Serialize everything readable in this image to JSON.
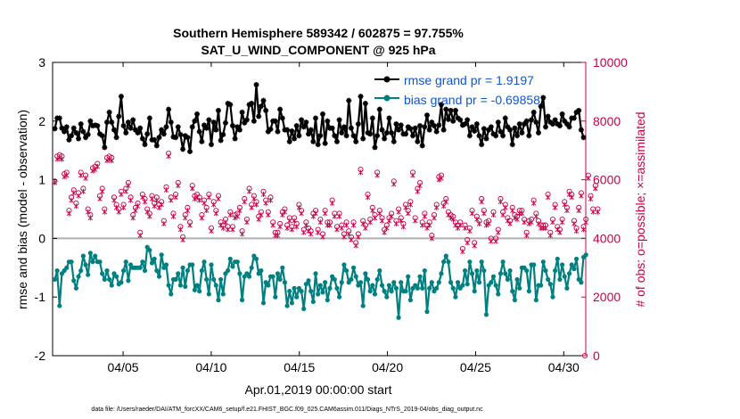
{
  "chart_data": {
    "type": "line",
    "title_line1": "Southern Hemisphere 589342 / 602875 = 97.755%",
    "title_line2": "SAT_U_WIND_COMPONENT @ 925 hPa",
    "xlabel": "Apr.01,2019 00:00:00 start",
    "ylabel_left": "rmse and bias (model - observation)",
    "ylabel_right": "# of obs: o=possible; ×=assimilated",
    "ylim_left": [
      -2,
      3
    ],
    "ylim_right": [
      0,
      10000
    ],
    "yticks_left": [
      "3",
      "2",
      "1",
      "0",
      "-1",
      "-2"
    ],
    "yticks_right": [
      "10000",
      "8000",
      "6000",
      "4000",
      "2000",
      "0"
    ],
    "xlim_days": [
      0,
      30.25
    ],
    "xticks": [
      {
        "day": 4,
        "label": "04/05"
      },
      {
        "day": 9,
        "label": "04/10"
      },
      {
        "day": 14,
        "label": "04/15"
      },
      {
        "day": 19,
        "label": "04/20"
      },
      {
        "day": 24,
        "label": "04/25"
      },
      {
        "day": 29,
        "label": "04/30"
      }
    ],
    "zero_line": 0,
    "colors": {
      "rmse": "#000000",
      "bias": "#008080",
      "obs": "#c8004a",
      "zero": "#b0b0b0",
      "legend_text": "#1155cc"
    },
    "series": [
      {
        "name": "rmse grand pr = 1.9197",
        "key": "rmse",
        "values": [
          1.87,
          2.05,
          2.05,
          1.88,
          1.82,
          1.9,
          1.68,
          1.75,
          1.88,
          1.8,
          1.7,
          1.95,
          1.82,
          1.72,
          1.77,
          2.0,
          1.92,
          1.93,
          1.92,
          1.78,
          1.75,
          1.55,
          1.98,
          2.15,
          1.98,
          1.85,
          1.72,
          2.08,
          2.42,
          1.92,
          1.8,
          1.98,
          1.88,
          2.02,
          1.85,
          1.8,
          1.88,
          1.7,
          1.6,
          1.78,
          2.05,
          1.68,
          1.68,
          1.58,
          1.72,
          1.85,
          1.78,
          1.9,
          2.2,
          1.98,
          1.73,
          1.72,
          1.9,
          1.77,
          1.52,
          1.75,
          1.72,
          1.48,
          1.9,
          2.0,
          2.12,
          1.82,
          1.65,
          1.93,
          1.88,
          2.02,
          1.6,
          1.98,
          1.85,
          2.18,
          1.67,
          1.77,
          1.97,
          2.3,
          2.28,
          1.92,
          1.7,
          1.9,
          1.85,
          2.15,
          1.97,
          2.02,
          2.28,
          2.3,
          2.0,
          2.62,
          2.08,
          2.25,
          2.35,
          2.18,
          1.82,
          1.86,
          2.0,
          2.0,
          1.82,
          2.2,
          2.05,
          1.85,
          1.85,
          1.65,
          1.83,
          1.7,
          1.92,
          1.75,
          2.02,
          1.9,
          1.98,
          1.78,
          1.85,
          1.65,
          2.05,
          1.6,
          1.75,
          2.12,
          1.62,
          2.0,
          1.88,
          1.88,
          1.75,
          1.65,
          2.02,
          1.8,
          1.9,
          1.75,
          2.35,
          1.88,
          1.75,
          1.65,
          1.95,
          2.42,
          1.7,
          2.3,
          1.8,
          1.78,
          2.05,
          1.55,
          1.75,
          2.2,
          1.85,
          1.7,
          1.8,
          2.05,
          1.8,
          1.65,
          1.95,
          1.85,
          1.93,
          1.78,
          1.78,
          1.9,
          1.87,
          1.75,
          1.88,
          1.65,
          1.92,
          1.58,
          1.9,
          2.1,
          1.85,
          1.98,
          1.92,
          1.82,
          1.93,
          2.28,
          1.85,
          2.2,
          2.03,
          2.18,
          2.0,
          2.18,
          2.05,
          2.02,
          1.93,
          1.95,
          2.02,
          1.75,
          1.9,
          1.83,
          1.95,
          1.75,
          1.6,
          1.87,
          1.7,
          1.85,
          1.9,
          1.78,
          1.75,
          1.98,
          1.82,
          1.75,
          2.05,
          1.9,
          1.85,
          1.6,
          1.88,
          1.75,
          1.95,
          1.8,
          1.95,
          2.0,
          1.75,
          2.02,
          2.15,
          1.98,
          1.8,
          2.25,
          2.4,
          1.9,
          2.08,
          1.98,
          1.95,
          2.02,
          1.95,
          1.92,
          2.12,
          2.0,
          1.95,
          1.9,
          2.05,
          2.05,
          2.15,
          2.18,
          1.85,
          1.72
        ]
      },
      {
        "name": "bias grand pr = -0.69858",
        "key": "bias",
        "values": [
          -0.7,
          -0.55,
          -1.15,
          -0.6,
          -0.55,
          -0.5,
          -0.4,
          -0.4,
          -0.72,
          -0.85,
          -0.65,
          -0.55,
          -0.3,
          -0.45,
          -0.62,
          -0.25,
          -0.4,
          -0.3,
          -0.4,
          -0.4,
          -0.6,
          -0.7,
          -0.55,
          -0.7,
          -0.8,
          -0.6,
          -0.65,
          -0.78,
          -0.75,
          -0.55,
          -0.4,
          -0.72,
          -0.45,
          -0.5,
          -0.5,
          -0.5,
          -0.5,
          -0.4,
          -0.55,
          -0.15,
          -0.2,
          -0.42,
          -0.35,
          -0.55,
          -0.65,
          -0.28,
          -0.5,
          -0.45,
          -0.8,
          -0.95,
          -0.7,
          -0.7,
          -0.6,
          -0.8,
          -0.5,
          -0.82,
          -0.55,
          -0.45,
          -0.45,
          -0.88,
          -0.8,
          -0.9,
          -0.55,
          -0.4,
          -0.7,
          -0.95,
          -0.45,
          -0.7,
          -0.8,
          -1.05,
          -0.7,
          -0.95,
          -0.6,
          -0.55,
          -0.35,
          -0.48,
          -0.4,
          -0.4,
          -0.6,
          -1.05,
          -0.65,
          -0.6,
          -0.65,
          -0.5,
          -0.3,
          -0.35,
          -0.6,
          -0.55,
          -1.1,
          -0.75,
          -0.8,
          -0.65,
          -0.65,
          -1.0,
          -0.6,
          -0.7,
          -0.5,
          -0.75,
          -1.15,
          -0.9,
          -1.1,
          -0.85,
          -1.0,
          -0.85,
          -0.9,
          -1.2,
          -0.78,
          -0.72,
          -0.9,
          -1.08,
          -0.6,
          -0.95,
          -0.8,
          -0.92,
          -0.75,
          -1.05,
          -0.85,
          -0.65,
          -0.7,
          -0.85,
          -1.0,
          -0.75,
          -0.45,
          -0.55,
          -0.75,
          -0.7,
          -0.5,
          -0.65,
          -0.8,
          -0.75,
          -1.15,
          -0.6,
          -0.7,
          -0.9,
          -0.8,
          -0.95,
          -0.7,
          -0.55,
          -0.8,
          -0.9,
          -1.0,
          -0.8,
          -0.9,
          -0.75,
          -0.85,
          -1.35,
          -0.75,
          -0.9,
          -0.9,
          -0.65,
          -1.05,
          -0.85,
          -0.8,
          -0.85,
          -0.65,
          -0.85,
          -0.55,
          -1.25,
          -0.85,
          -0.75,
          -0.9,
          -0.85,
          -0.75,
          -0.6,
          -0.4,
          -0.3,
          -0.4,
          -0.75,
          -0.85,
          -1.0,
          -0.75,
          -0.85,
          -0.8,
          -0.55,
          -0.78,
          -0.4,
          -0.6,
          -0.9,
          -0.55,
          -0.75,
          -0.4,
          -0.55,
          -1.3,
          -0.8,
          -0.75,
          -0.65,
          -0.8,
          -0.95,
          -0.6,
          -0.4,
          -0.6,
          -0.7,
          -0.55,
          -0.9,
          -1.05,
          -0.7,
          -0.85,
          -0.5,
          -0.5,
          -0.55,
          -0.9,
          -0.45,
          -0.45,
          -1.05,
          -0.8,
          -0.8,
          -0.4,
          -0.55,
          -0.7,
          -0.78,
          -1.0,
          -0.55,
          -0.35,
          -0.7,
          -0.45,
          -0.65,
          -0.85,
          -0.6,
          -0.45,
          -0.52,
          -0.35,
          -0.7,
          -0.75,
          -0.32,
          -0.28
        ]
      },
      {
        "name": "obs possible",
        "key": "obs_possible",
        "values": [
          5950,
          6800,
          6850,
          6800,
          6200,
          6250,
          4950,
          5400,
          5650,
          5200,
          5550,
          6250,
          5700,
          6150,
          5000,
          4800,
          6400,
          6450,
          6550,
          5450,
          5700,
          5000,
          6750,
          6800,
          6750,
          5400,
          5150,
          5000,
          5600,
          5150,
          5700,
          5900,
          5400,
          4800,
          5050,
          5200,
          4200,
          5500,
          5350,
          5000,
          4850,
          5450,
          5200,
          5400,
          5150,
          5250,
          4600,
          5750,
          6900,
          5400,
          4850,
          5500,
          5900,
          4400,
          4050,
          4800,
          5050,
          4550,
          5800,
          5450,
          5500,
          5400,
          4800,
          5300,
          5050,
          5500,
          4350,
          5250,
          4950,
          5450,
          4550,
          4450,
          4650,
          4400,
          4900,
          4400,
          4800,
          4850,
          5050,
          4250,
          5350,
          4650,
          5700,
          5150,
          5450,
          5250,
          4750,
          4900,
          5600,
          5300,
          4900,
          5400,
          4550,
          4200,
          4200,
          4500,
          4900,
          5000,
          4450,
          4700,
          4400,
          4700,
          4500,
          5150,
          4950,
          4300,
          4550,
          4350,
          4250,
          4850,
          4950,
          4300,
          4650,
          4150,
          4950,
          4550,
          4550,
          5300,
          4850,
          4400,
          4850,
          4450,
          4150,
          4550,
          4250,
          4050,
          4550,
          3850,
          4150,
          6350,
          4600,
          4450,
          5500,
          4650,
          5050,
          4800,
          6250,
          4950,
          4700,
          4300,
          4450,
          4700,
          4850,
          5950,
          4600,
          5000,
          4700,
          4500,
          5150,
          4950,
          5250,
          6250,
          4700,
          5700,
          5900,
          4550,
          4850,
          4450,
          4550,
          4100,
          4800,
          5150,
          6100,
          6150,
          5200,
          5350,
          4900,
          4800,
          4750,
          4550,
          4450,
          4550,
          3650,
          4450,
          3950,
          4350,
          4950,
          3850,
          4750,
          4600,
          5350,
          4950,
          4550,
          4600,
          4000,
          4900,
          4000,
          4300,
          5350,
          4900,
          5150,
          4700,
          4600,
          5050,
          4800,
          4750,
          4950,
          4950,
          4650,
          4200,
          4600,
          4650,
          5300,
          4850,
          4600,
          4450,
          4450,
          4450,
          5500,
          4200,
          4650,
          5150,
          4400,
          4300,
          4650,
          5250,
          5050,
          5600,
          5500,
          4600,
          4350,
          5050,
          5550,
          4400,
          4650,
          6150,
          5450,
          5000,
          5800,
          5000
        ]
      },
      {
        "name": "obs assimilated",
        "key": "obs_assimilated",
        "values": [
          5900,
          6700,
          6750,
          6700,
          6100,
          6150,
          4850,
          5300,
          5550,
          5100,
          5450,
          6150,
          5600,
          6050,
          4900,
          4700,
          6300,
          6350,
          6450,
          5350,
          5600,
          4900,
          6650,
          6700,
          6650,
          5300,
          5050,
          4900,
          5500,
          5050,
          5600,
          5800,
          5300,
          4700,
          4950,
          5100,
          4100,
          5400,
          5250,
          4900,
          4750,
          5350,
          5100,
          5300,
          5050,
          5150,
          4500,
          5650,
          6800,
          5300,
          4750,
          5400,
          5800,
          4300,
          3950,
          4700,
          4950,
          4450,
          5700,
          5350,
          5400,
          5300,
          4700,
          5200,
          4950,
          5400,
          4250,
          5150,
          4850,
          5350,
          4450,
          4350,
          4550,
          4300,
          4800,
          4300,
          4700,
          4750,
          4950,
          4150,
          5250,
          4550,
          5600,
          5050,
          5350,
          5150,
          4650,
          4800,
          5500,
          5200,
          4800,
          5300,
          4450,
          4100,
          4100,
          4400,
          4800,
          4900,
          4350,
          4600,
          4300,
          4600,
          4400,
          5050,
          4850,
          4200,
          4450,
          4250,
          4150,
          4750,
          4850,
          4200,
          4550,
          4050,
          4850,
          4450,
          4450,
          5200,
          4750,
          4300,
          4750,
          4350,
          4050,
          4450,
          4150,
          3950,
          4450,
          3750,
          4050,
          6250,
          4500,
          4350,
          5400,
          4550,
          4950,
          4700,
          6150,
          4850,
          4600,
          4200,
          4350,
          4600,
          4750,
          5850,
          4500,
          4900,
          4600,
          4400,
          5050,
          4850,
          5150,
          6150,
          4600,
          5600,
          5800,
          4450,
          4750,
          4350,
          4450,
          4000,
          4700,
          5050,
          6000,
          6050,
          5100,
          5250,
          4800,
          4700,
          4650,
          4450,
          4350,
          4450,
          3550,
          4350,
          3850,
          4250,
          4850,
          3750,
          4650,
          4500,
          5250,
          4850,
          4450,
          4500,
          3900,
          4800,
          3900,
          4200,
          5250,
          4800,
          5050,
          4600,
          4500,
          4950,
          4700,
          4650,
          4850,
          4850,
          4550,
          4100,
          4500,
          4550,
          5200,
          4750,
          4500,
          4350,
          4350,
          4350,
          5400,
          4100,
          4550,
          5050,
          4300,
          4200,
          4550,
          5150,
          4950,
          5500,
          5400,
          4500,
          4250,
          4950,
          5450,
          4300,
          4550,
          6050,
          5350,
          4900,
          5700,
          4900
        ]
      }
    ],
    "final_obs_zero": "0"
  },
  "footer_text": "data file: /Users/raeder/DAI/ATM_forcXX/CAM6_setup/f.e21.FHIST_BGC.f09_025.CAM6assim.011/Diags_NTrS_2019-04/obs_diag_output.nc"
}
